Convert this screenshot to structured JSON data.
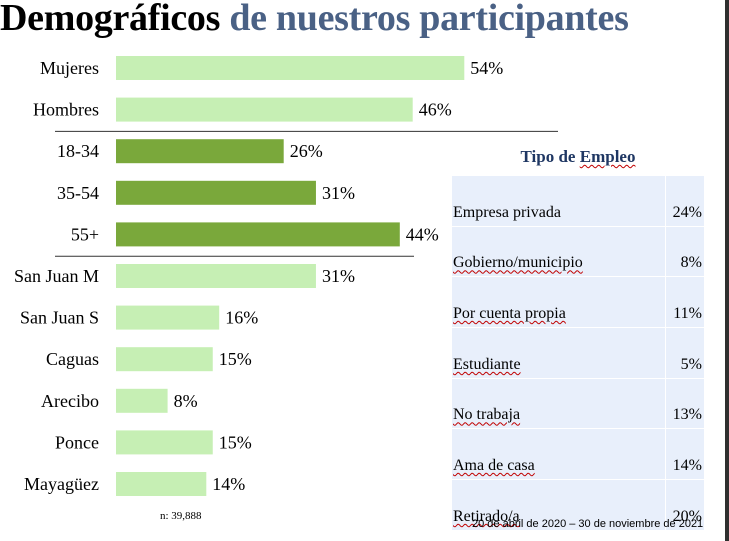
{
  "header": {
    "title_part1": "Demográficos",
    "title_part2": "de nuestros participantes"
  },
  "colors": {
    "light_green": "#c6efb4",
    "dark_green": "#7aa83b",
    "title_blue": "#4a6185",
    "table_bg": "#e8effb",
    "table_title": "#1f3763"
  },
  "chart_data": {
    "type": "bar",
    "orientation": "horizontal",
    "title": "",
    "xlabel": "",
    "ylabel": "",
    "xlim": [
      0,
      60
    ],
    "grid": false,
    "groups": [
      {
        "categories": [
          "Mujeres",
          "Hombres"
        ],
        "values": [
          54,
          46
        ],
        "labels": [
          "54%",
          "46%"
        ],
        "color": "#c6efb4"
      },
      {
        "categories": [
          "18-34",
          "35-54",
          "55+"
        ],
        "values": [
          26,
          31,
          44
        ],
        "labels": [
          "26%",
          "31%",
          "44%"
        ],
        "color": "#7aa83b"
      },
      {
        "categories": [
          "San Juan M",
          "San Juan S",
          "Caguas",
          "Arecibo",
          "Ponce",
          "Mayagüez"
        ],
        "values": [
          31,
          16,
          15,
          8,
          15,
          14
        ],
        "labels": [
          "31%",
          "16%",
          "15%",
          "8%",
          "15%",
          "14%"
        ],
        "color": "#c6efb4"
      }
    ]
  },
  "employment": {
    "title_word1": "Tipo de",
    "title_word2": "Empleo",
    "rows": [
      {
        "label": "Empresa privada",
        "value": "24%"
      },
      {
        "label": "Gobierno/municipio",
        "value": "8%"
      },
      {
        "label": "Por cuenta propia",
        "value": "11%"
      },
      {
        "label": "Estudiante",
        "value": "5%"
      },
      {
        "label": "No trabaja",
        "value": "13%"
      },
      {
        "label": "Ama de casa",
        "value": "14%"
      },
      {
        "label": "Retirado/a",
        "value": "20%"
      }
    ]
  },
  "footer": {
    "sample": "n: 39,888",
    "date_range": "20 de abril de 2020 – 30 de noviembre de 2021"
  }
}
